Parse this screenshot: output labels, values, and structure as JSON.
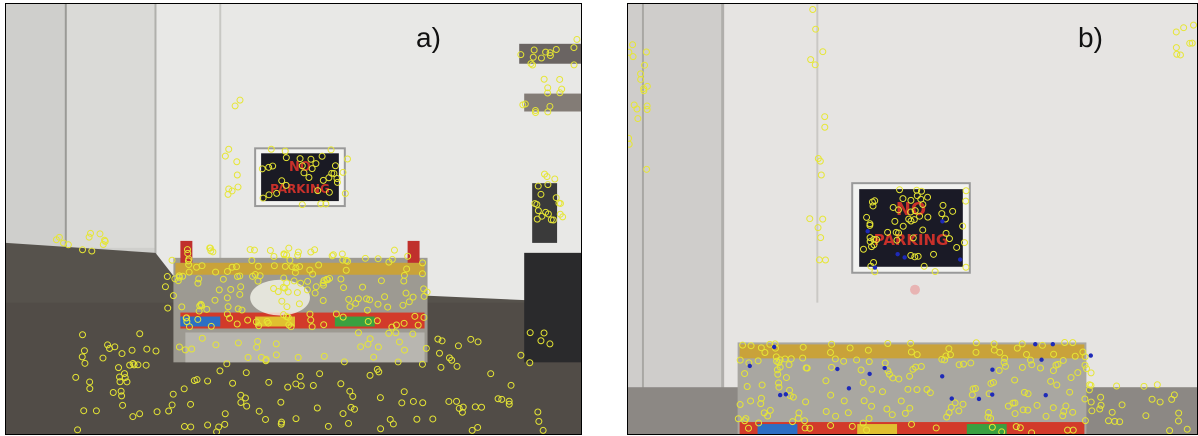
{
  "panels": [
    {
      "label": "a)",
      "sign_lines": [
        "NO",
        "PARKING"
      ],
      "colors": {
        "wall": "#e9e9e7",
        "floor": "#57544e",
        "door": "#d9d9d6",
        "keypoint": "#e6e634"
      }
    },
    {
      "label": "b)",
      "sign_lines": [
        "NO",
        "PARKING"
      ],
      "colors": {
        "wall": "#e7e5e4",
        "floor": "#8a8682",
        "door": "#d8d7d6",
        "keypoint": "#e6e634",
        "keypoint_alt": "#1e2ab8"
      }
    }
  ]
}
